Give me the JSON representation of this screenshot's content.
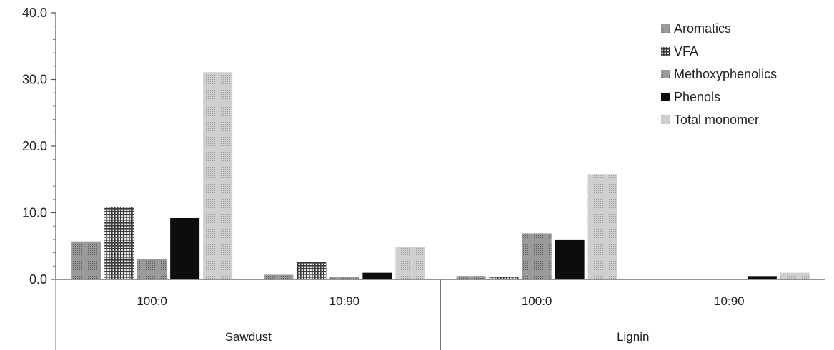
{
  "chart_data": {
    "type": "bar",
    "groups": [
      {
        "label": "Sawdust",
        "categories": [
          "100:0",
          "10:90"
        ]
      },
      {
        "label": "Lignin",
        "categories": [
          "100:0",
          "10:90"
        ]
      }
    ],
    "categories": [
      "100:0",
      "10:90",
      "100:0",
      "10:90"
    ],
    "series": [
      {
        "name": "Aromatics",
        "values": [
          5.7,
          0.7,
          0.5,
          0.1
        ],
        "color": "#8a8a8a",
        "pattern": "dots-fine"
      },
      {
        "name": "VFA",
        "values": [
          10.9,
          2.6,
          0.4,
          0.05
        ],
        "color": "#6e6e6e",
        "pattern": "grid"
      },
      {
        "name": "Methoxyphenolics",
        "values": [
          3.1,
          0.4,
          6.9,
          0.1
        ],
        "color": "#7c7c7c",
        "pattern": "dots-fine"
      },
      {
        "name": "Phenols",
        "values": [
          9.2,
          1.0,
          6.0,
          0.5
        ],
        "color": "#0d0d0d",
        "pattern": "solid"
      },
      {
        "name": "Total monomer",
        "values": [
          31.1,
          4.9,
          15.8,
          1.0
        ],
        "color": "#bdbdbd",
        "pattern": "dots-light"
      }
    ],
    "ylim": [
      0,
      40
    ],
    "yticks": [
      "0.0",
      "10.0",
      "20.0",
      "30.0",
      "40.0"
    ],
    "ytick_values": [
      0,
      10,
      20,
      30,
      40
    ],
    "grid": false,
    "legend_position": "top-right",
    "title": "",
    "xlabel": "",
    "ylabel": ""
  }
}
